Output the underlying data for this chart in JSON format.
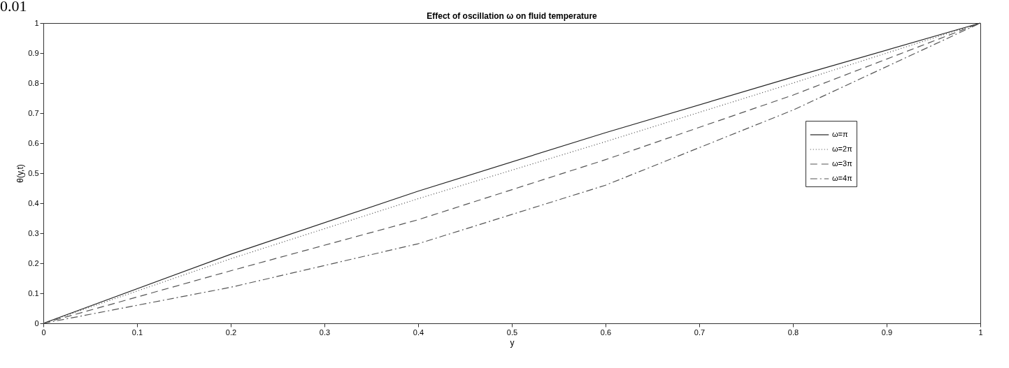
{
  "chart_data": {
    "type": "line",
    "title": "Effect of oscillation ω on fluid temperature",
    "xlabel": "y",
    "ylabel": "θ(y,t)",
    "annotations": [
      "0.01"
    ],
    "x": [
      0,
      0.2,
      0.4,
      0.6,
      0.8,
      1
    ],
    "series": [
      {
        "name": "ω=π",
        "color": "#222222",
        "line_style": "solid",
        "values": [
          0,
          0.23,
          0.44,
          0.635,
          0.82,
          1
        ]
      },
      {
        "name": "ω=2π",
        "color": "#444444",
        "line_style": "dotted",
        "values": [
          0,
          0.215,
          0.415,
          0.605,
          0.8,
          1
        ]
      },
      {
        "name": "ω=3π",
        "color": "#555555",
        "line_style": "dashed",
        "values": [
          0,
          0.175,
          0.345,
          0.545,
          0.76,
          1
        ]
      },
      {
        "name": "ω=4π",
        "color": "#555555",
        "line_style": "dashdot",
        "values": [
          0,
          0.12,
          0.265,
          0.46,
          0.71,
          1
        ]
      }
    ],
    "xlim": [
      0,
      1
    ],
    "ylim": [
      0,
      1
    ],
    "xticks": [
      0,
      0.1,
      0.2,
      0.3,
      0.4,
      0.5,
      0.6,
      0.7,
      0.8,
      0.9,
      1
    ],
    "yticks": [
      0,
      0.1,
      0.2,
      0.3,
      0.4,
      0.5,
      0.6,
      0.7,
      0.8,
      0.9,
      1
    ],
    "grid": false,
    "legend": "right",
    "marker": "none"
  }
}
